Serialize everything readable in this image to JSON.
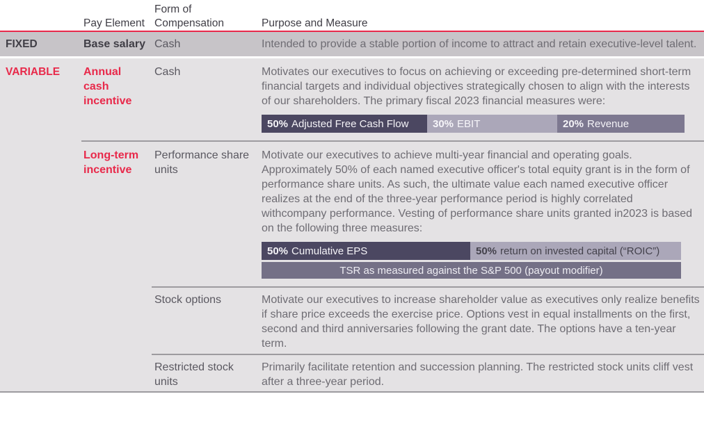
{
  "colors": {
    "accent_red": "#e8294a",
    "fixed_row_bg": "#c7c4c8",
    "variable_row_bg": "#e4e2e4",
    "dark_text": "#403e46",
    "body_text": "#6e6c73",
    "form_text": "#5a5860",
    "bar_dark": "#4b4761",
    "bar_light": "#aba7b9",
    "bar_medium": "#7d7890",
    "bar_tsr": "#747086",
    "divider": "#9d9b9f"
  },
  "header": {
    "pay_element": "Pay Element",
    "form": "Form of Compensation",
    "purpose": "Purpose and Measure"
  },
  "fixed": {
    "category": "FIXED",
    "pay_element": "Base salary",
    "form": "Cash",
    "purpose": "Intended to provide a stable portion of income to attract and retain executive-level talent."
  },
  "variable": {
    "category": "VARIABLE",
    "annual_cash": {
      "pay_element": "Annual cash incentive",
      "form": "Cash",
      "purpose": "Motivates our executives to focus on achieving or exceeding pre-determined short-term financial targets and individual objectives strategically chosen to align with the interests of our shareholders. The primary fiscal 2023 financial measures were:",
      "measures": [
        {
          "pct": "50%",
          "label": "Adjusted Free Cash Flow"
        },
        {
          "pct": "30%",
          "label": "EBIT"
        },
        {
          "pct": "20%",
          "label": "Revenue"
        }
      ]
    },
    "long_term": {
      "pay_element": "Long-term incentive",
      "psu": {
        "form": "Performance share units",
        "purpose": "Motivate our executives to achieve multi-year financial and operating goals. Approximately 50% of each named executive officer's total equity grant is in the form of performance share units. As such, the ultimate value each named executive officer realizes at the end of the three-year performance period is highly correlated withcompany performance. Vesting of performance share units granted in2023 is based on the following three measures:",
        "measures": [
          {
            "pct": "50%",
            "label": "Cumulative EPS"
          },
          {
            "pct": "50%",
            "label": "return on invested capital (“ROIC”)"
          }
        ],
        "tsr_measure": "TSR as measured against the S&P 500 (payout modifier)"
      },
      "stock_options": {
        "form": "Stock options",
        "purpose": "Motivate our executives to increase shareholder value as executives only realize benefits if share price exceeds the exercise price. Options vest in equal installments on the first, second and third anniversaries following the grant date. The options have a ten-year term."
      },
      "rsu": {
        "form": "Restricted stock units",
        "purpose": "Primarily facilitate retention and succession planning. The restricted stock units cliff vest after a three-year period."
      }
    }
  }
}
